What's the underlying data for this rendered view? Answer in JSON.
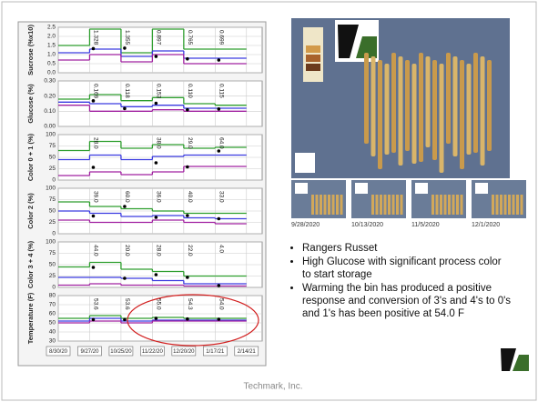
{
  "timeline": {
    "categories": [
      "8/30/20",
      "9/27/20",
      "10/25/20",
      "11/22/20",
      "12/20/20",
      "1/17/21",
      "2/14/21"
    ]
  },
  "chart_data": [
    {
      "type": "step",
      "ylabel": "Sucrose (%x10)",
      "ylim": [
        0,
        2.5
      ],
      "yticks": [
        {
          "value": 0,
          "label": "0.0"
        },
        0.5,
        {
          "value": 1,
          "label": "1.0"
        },
        1.5,
        {
          "value": 2,
          "label": "2.0"
        },
        2.5
      ],
      "series": [
        {
          "color": "#2e9e2e",
          "values": [
            1.5,
            2.4,
            1.1,
            2.4,
            1.3,
            1.3,
            null
          ]
        },
        {
          "color": "#3a3ae0",
          "values": [
            1.1,
            1.3,
            0.9,
            1.2,
            0.8,
            0.8,
            null
          ]
        },
        {
          "color": "#a020a0",
          "values": [
            0.7,
            1.0,
            0.6,
            1.0,
            0.5,
            0.5,
            null
          ]
        }
      ],
      "points": {
        "color": "#000000",
        "values": [
          null,
          1.328,
          1.355,
          0.897,
          0.765,
          0.699,
          null
        ],
        "value_labels": [
          null,
          "1.328",
          "1.355",
          "0.897",
          "0.765",
          "0.699",
          null
        ]
      }
    },
    {
      "type": "step",
      "ylabel": "Glucose (%)",
      "ylim": [
        0,
        0.3
      ],
      "yticks": [
        {
          "value": 0,
          "label": "0.00"
        },
        {
          "value": 0.1,
          "label": "0.10"
        },
        {
          "value": 0.2,
          "label": "0.20"
        },
        {
          "value": 0.3,
          "label": "0.30"
        }
      ],
      "series": [
        {
          "color": "#2e9e2e",
          "values": [
            0.18,
            0.21,
            0.17,
            0.19,
            0.15,
            0.14,
            null
          ]
        },
        {
          "color": "#3a3ae0",
          "values": [
            0.16,
            0.15,
            0.13,
            0.14,
            0.12,
            0.12,
            null
          ]
        },
        {
          "color": "#a020a0",
          "values": [
            0.14,
            0.1,
            0.1,
            0.11,
            0.1,
            0.1,
            null
          ]
        }
      ],
      "points": {
        "color": "#000000",
        "values": [
          null,
          0.169,
          0.118,
          0.153,
          0.11,
          0.115,
          null
        ],
        "value_labels": [
          null,
          "0.169",
          "0.118",
          "0.153",
          "0.110",
          "0.115",
          null
        ]
      }
    },
    {
      "type": "step",
      "ylabel": "Color 0 + 1 (%)",
      "ylim": [
        0,
        100
      ],
      "yticks": [
        0,
        25,
        50,
        75,
        100
      ],
      "series": [
        {
          "color": "#2e9e2e",
          "values": [
            65,
            85,
            70,
            78,
            70,
            72,
            null
          ]
        },
        {
          "color": "#3a3ae0",
          "values": [
            45,
            55,
            45,
            52,
            55,
            55,
            null
          ]
        },
        {
          "color": "#a020a0",
          "values": [
            10,
            18,
            12,
            18,
            30,
            30,
            null
          ]
        }
      ],
      "points": {
        "color": "#000000",
        "values": [
          null,
          28,
          null,
          38,
          29,
          64,
          null
        ],
        "value_labels": [
          null,
          "28.0",
          null,
          "38.0",
          "29.0",
          "64.0",
          null
        ]
      }
    },
    {
      "type": "step",
      "ylabel": "Color 2 (%)",
      "ylim": [
        0,
        100
      ],
      "yticks": [
        0,
        25,
        50,
        75,
        100
      ],
      "series": [
        {
          "color": "#2e9e2e",
          "values": [
            70,
            60,
            55,
            50,
            45,
            45,
            null
          ]
        },
        {
          "color": "#3a3ae0",
          "values": [
            50,
            45,
            38,
            40,
            35,
            33,
            null
          ]
        },
        {
          "color": "#a020a0",
          "values": [
            30,
            25,
            25,
            30,
            25,
            22,
            null
          ]
        }
      ],
      "points": {
        "color": "#000000",
        "values": [
          null,
          39,
          60,
          36,
          40,
          33,
          null
        ],
        "value_labels": [
          null,
          "39.0",
          "60.0",
          "36.0",
          "40.0",
          "33.0",
          null
        ]
      }
    },
    {
      "type": "step",
      "ylabel": "Color 3 + 4 (%)",
      "ylim": [
        0,
        100
      ],
      "yticks": [
        0,
        25,
        50,
        75,
        100
      ],
      "series": [
        {
          "color": "#2e9e2e",
          "values": [
            45,
            55,
            40,
            35,
            25,
            25,
            null
          ]
        },
        {
          "color": "#3a3ae0",
          "values": [
            22,
            22,
            20,
            15,
            8,
            8,
            null
          ]
        },
        {
          "color": "#a020a0",
          "values": [
            5,
            8,
            5,
            5,
            3,
            3,
            null
          ]
        }
      ],
      "points": {
        "color": "#000000",
        "values": [
          null,
          44,
          20,
          28,
          22,
          4,
          null
        ],
        "value_labels": [
          null,
          "44.0",
          "20.0",
          "28.0",
          "22.0",
          "4.0",
          null
        ]
      }
    },
    {
      "type": "step",
      "ylabel": "Temperature (F)",
      "ylim": [
        30,
        80
      ],
      "yticks": [
        30,
        40,
        50,
        60,
        70,
        80
      ],
      "series": [
        {
          "color": "#2e9e2e",
          "values": [
            55,
            58,
            55,
            56,
            55,
            55,
            null
          ]
        },
        {
          "color": "#3a3ae0",
          "values": [
            52,
            55,
            52,
            53,
            53,
            53,
            null
          ]
        },
        {
          "color": "#a020a0",
          "values": [
            50,
            52,
            50,
            52,
            52,
            52,
            null
          ]
        }
      ],
      "points": {
        "color": "#000000",
        "values": [
          null,
          53.6,
          53.6,
          55,
          54.3,
          54,
          null
        ],
        "value_labels": [
          null,
          "53.6",
          "53.6",
          "55.0",
          "54.3",
          "54.0",
          null
        ]
      }
    }
  ],
  "photos": {
    "captions": [
      "9/28/2020",
      "10/13/2020",
      "11/5/2020",
      "12/1/2020"
    ]
  },
  "bullets": [
    "Rangers Russet",
    "High Glucose with significant process color to start storage",
    "Warming the bin has produced a positive response and conversion of 3's and 4's to 0's and 1's has been positive at 54.0 F"
  ],
  "footer": "Techmark, Inc."
}
